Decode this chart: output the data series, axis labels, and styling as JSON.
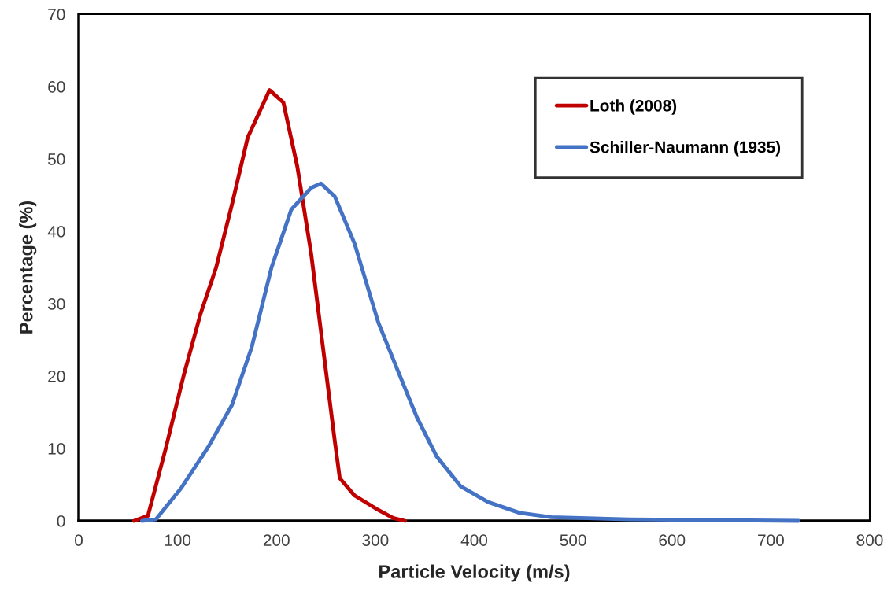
{
  "chart_data": {
    "type": "line",
    "xlabel": "Particle Velocity (m/s)",
    "ylabel": "Percentage (%)",
    "xlim": [
      0,
      800
    ],
    "xticks": [
      0,
      100,
      200,
      300,
      400,
      500,
      600,
      700,
      800
    ],
    "ylim": [
      0,
      70
    ],
    "yticks": [
      0,
      10,
      20,
      30,
      40,
      50,
      60,
      70
    ],
    "grid": false,
    "legend": "top right",
    "marker": "none",
    "line_style": "solid",
    "series": [
      {
        "name": "Loth (2008)",
        "color": "#c00000",
        "x": [
          56,
          70,
          88,
          106,
          123,
          139,
          155,
          171,
          193,
          207,
          221,
          235,
          247,
          259,
          264,
          279,
          303,
          318,
          330
        ],
        "values": [
          0,
          0.7,
          10,
          20,
          28.5,
          35,
          43.7,
          53,
          59.5,
          57.8,
          49,
          37,
          24,
          11,
          5.9,
          3.5,
          1.5,
          0.4,
          0
        ]
      },
      {
        "name": "Schiller-Naumann (1935)",
        "color": "#4472c4",
        "x": [
          64,
          78,
          104,
          131,
          155,
          175,
          195,
          215,
          235,
          245,
          259,
          279,
          303,
          322,
          342,
          362,
          386,
          414,
          446,
          478,
          557,
          728
        ],
        "values": [
          0,
          0.2,
          4.6,
          10.2,
          16,
          24,
          35,
          43,
          46,
          46.6,
          44.8,
          38.3,
          27.4,
          21,
          14.3,
          8.9,
          4.8,
          2.6,
          1.1,
          0.5,
          0.2,
          0
        ]
      }
    ]
  }
}
